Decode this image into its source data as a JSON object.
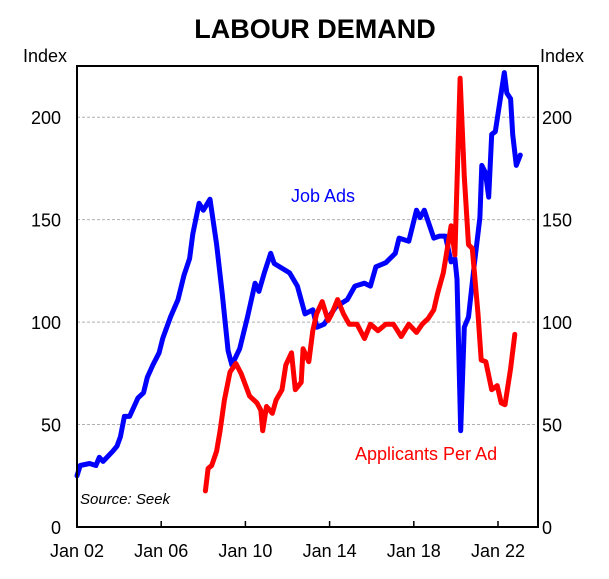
{
  "chart_data": {
    "type": "line",
    "title": "LABOUR DEMAND",
    "ylabel_left": "Index",
    "ylabel_right": "Index",
    "xlim": [
      2002,
      2023.9
    ],
    "ylim": [
      0,
      225
    ],
    "yticks": [
      0,
      50,
      100,
      150,
      200
    ],
    "ytick_labels": [
      "0",
      "50",
      "100",
      "150",
      "200"
    ],
    "xticks": [
      2002,
      2006,
      2010,
      2014,
      2018,
      2022
    ],
    "xtick_labels": [
      "Jan 02",
      "Jan 06",
      "Jan 10",
      "Jan 14",
      "Jan 18",
      "Jan 22"
    ],
    "grid": true,
    "source": "Source: Seek",
    "series": [
      {
        "name": "Job Ads",
        "color": "#0000ff",
        "points": [
          [
            2002.0,
            25
          ],
          [
            2002.15,
            30
          ],
          [
            2002.6,
            31
          ],
          [
            2002.9,
            30
          ],
          [
            2003.06,
            34
          ],
          [
            2003.24,
            32
          ],
          [
            2003.7,
            37
          ],
          [
            2003.9,
            39.5
          ],
          [
            2004.06,
            44
          ],
          [
            2004.25,
            54
          ],
          [
            2004.5,
            54
          ],
          [
            2004.9,
            63
          ],
          [
            2005.16,
            65.5
          ],
          [
            2005.34,
            73
          ],
          [
            2005.6,
            79
          ],
          [
            2005.9,
            85
          ],
          [
            2006.07,
            92
          ],
          [
            2006.44,
            102.5
          ],
          [
            2006.8,
            111
          ],
          [
            2007.08,
            122.7
          ],
          [
            2007.35,
            131
          ],
          [
            2007.5,
            143
          ],
          [
            2007.8,
            158
          ],
          [
            2008.0,
            154.6
          ],
          [
            2008.08,
            156
          ],
          [
            2008.32,
            160
          ],
          [
            2008.63,
            138
          ],
          [
            2008.9,
            114
          ],
          [
            2009.18,
            86
          ],
          [
            2009.36,
            79
          ],
          [
            2009.73,
            87
          ],
          [
            2010.1,
            102.5
          ],
          [
            2010.46,
            119
          ],
          [
            2010.64,
            115
          ],
          [
            2010.9,
            124
          ],
          [
            2011.2,
            133.6
          ],
          [
            2011.37,
            128.6
          ],
          [
            2012.1,
            124
          ],
          [
            2012.47,
            117.6
          ],
          [
            2012.83,
            104
          ],
          [
            2013.2,
            106
          ],
          [
            2013.4,
            97.5
          ],
          [
            2013.74,
            99
          ],
          [
            2014.3,
            107.5
          ],
          [
            2014.84,
            111
          ],
          [
            2015.2,
            117.6
          ],
          [
            2015.66,
            119
          ],
          [
            2015.94,
            117.6
          ],
          [
            2016.2,
            127
          ],
          [
            2016.67,
            129
          ],
          [
            2017.12,
            133.6
          ],
          [
            2017.3,
            141
          ],
          [
            2017.76,
            139.5
          ],
          [
            2018.13,
            154.6
          ],
          [
            2018.3,
            151
          ],
          [
            2018.5,
            154.6
          ],
          [
            2018.95,
            141
          ],
          [
            2019.22,
            142
          ],
          [
            2019.5,
            142
          ],
          [
            2019.77,
            129.4
          ],
          [
            2019.95,
            131
          ],
          [
            2020.05,
            121
          ],
          [
            2020.23,
            47
          ],
          [
            2020.4,
            97.5
          ],
          [
            2020.6,
            102.5
          ],
          [
            2020.87,
            127.7
          ],
          [
            2021.14,
            151
          ],
          [
            2021.23,
            176.5
          ],
          [
            2021.4,
            173
          ],
          [
            2021.56,
            161
          ],
          [
            2021.7,
            191.6
          ],
          [
            2021.87,
            193
          ],
          [
            2022.15,
            211.8
          ],
          [
            2022.3,
            221.8
          ],
          [
            2022.42,
            211.8
          ],
          [
            2022.6,
            209
          ],
          [
            2022.7,
            191.6
          ],
          [
            2022.87,
            176.5
          ],
          [
            2023.06,
            181.5
          ]
        ]
      },
      {
        "name": "Applicants Per Ad",
        "color": "#ff0000",
        "points": [
          [
            2008.1,
            17.6
          ],
          [
            2008.23,
            28.6
          ],
          [
            2008.4,
            30
          ],
          [
            2008.63,
            37
          ],
          [
            2008.8,
            47
          ],
          [
            2009.0,
            62
          ],
          [
            2009.27,
            75.6
          ],
          [
            2009.55,
            79.8
          ],
          [
            2009.8,
            74.8
          ],
          [
            2010.2,
            63.9
          ],
          [
            2010.55,
            60.5
          ],
          [
            2010.73,
            57
          ],
          [
            2010.82,
            47
          ],
          [
            2011.0,
            58.8
          ],
          [
            2011.28,
            55.5
          ],
          [
            2011.46,
            62
          ],
          [
            2011.74,
            67
          ],
          [
            2011.92,
            79
          ],
          [
            2012.19,
            85
          ],
          [
            2012.37,
            67
          ],
          [
            2012.65,
            70.6
          ],
          [
            2012.74,
            87
          ],
          [
            2013.01,
            80.7
          ],
          [
            2013.2,
            95.8
          ],
          [
            2013.38,
            104
          ],
          [
            2013.65,
            110
          ],
          [
            2013.93,
            100.8
          ],
          [
            2014.1,
            104
          ],
          [
            2014.38,
            111
          ],
          [
            2014.66,
            104
          ],
          [
            2014.93,
            99
          ],
          [
            2015.3,
            99
          ],
          [
            2015.66,
            92
          ],
          [
            2015.94,
            99
          ],
          [
            2016.3,
            95.8
          ],
          [
            2016.67,
            99
          ],
          [
            2017.03,
            99
          ],
          [
            2017.4,
            93
          ],
          [
            2017.76,
            99
          ],
          [
            2018.13,
            95
          ],
          [
            2018.4,
            99
          ],
          [
            2018.68,
            101.7
          ],
          [
            2018.95,
            106
          ],
          [
            2019.13,
            114
          ],
          [
            2019.4,
            124
          ],
          [
            2019.77,
            147
          ],
          [
            2019.95,
            132.8
          ],
          [
            2020.2,
            219
          ],
          [
            2020.4,
            171
          ],
          [
            2020.6,
            137.8
          ],
          [
            2020.78,
            136
          ],
          [
            2021.05,
            104
          ],
          [
            2021.2,
            81.5
          ],
          [
            2021.42,
            80.7
          ],
          [
            2021.7,
            67
          ],
          [
            2021.96,
            69
          ],
          [
            2022.15,
            60.5
          ],
          [
            2022.33,
            59.7
          ],
          [
            2022.6,
            77.3
          ],
          [
            2022.8,
            94
          ]
        ]
      }
    ]
  }
}
